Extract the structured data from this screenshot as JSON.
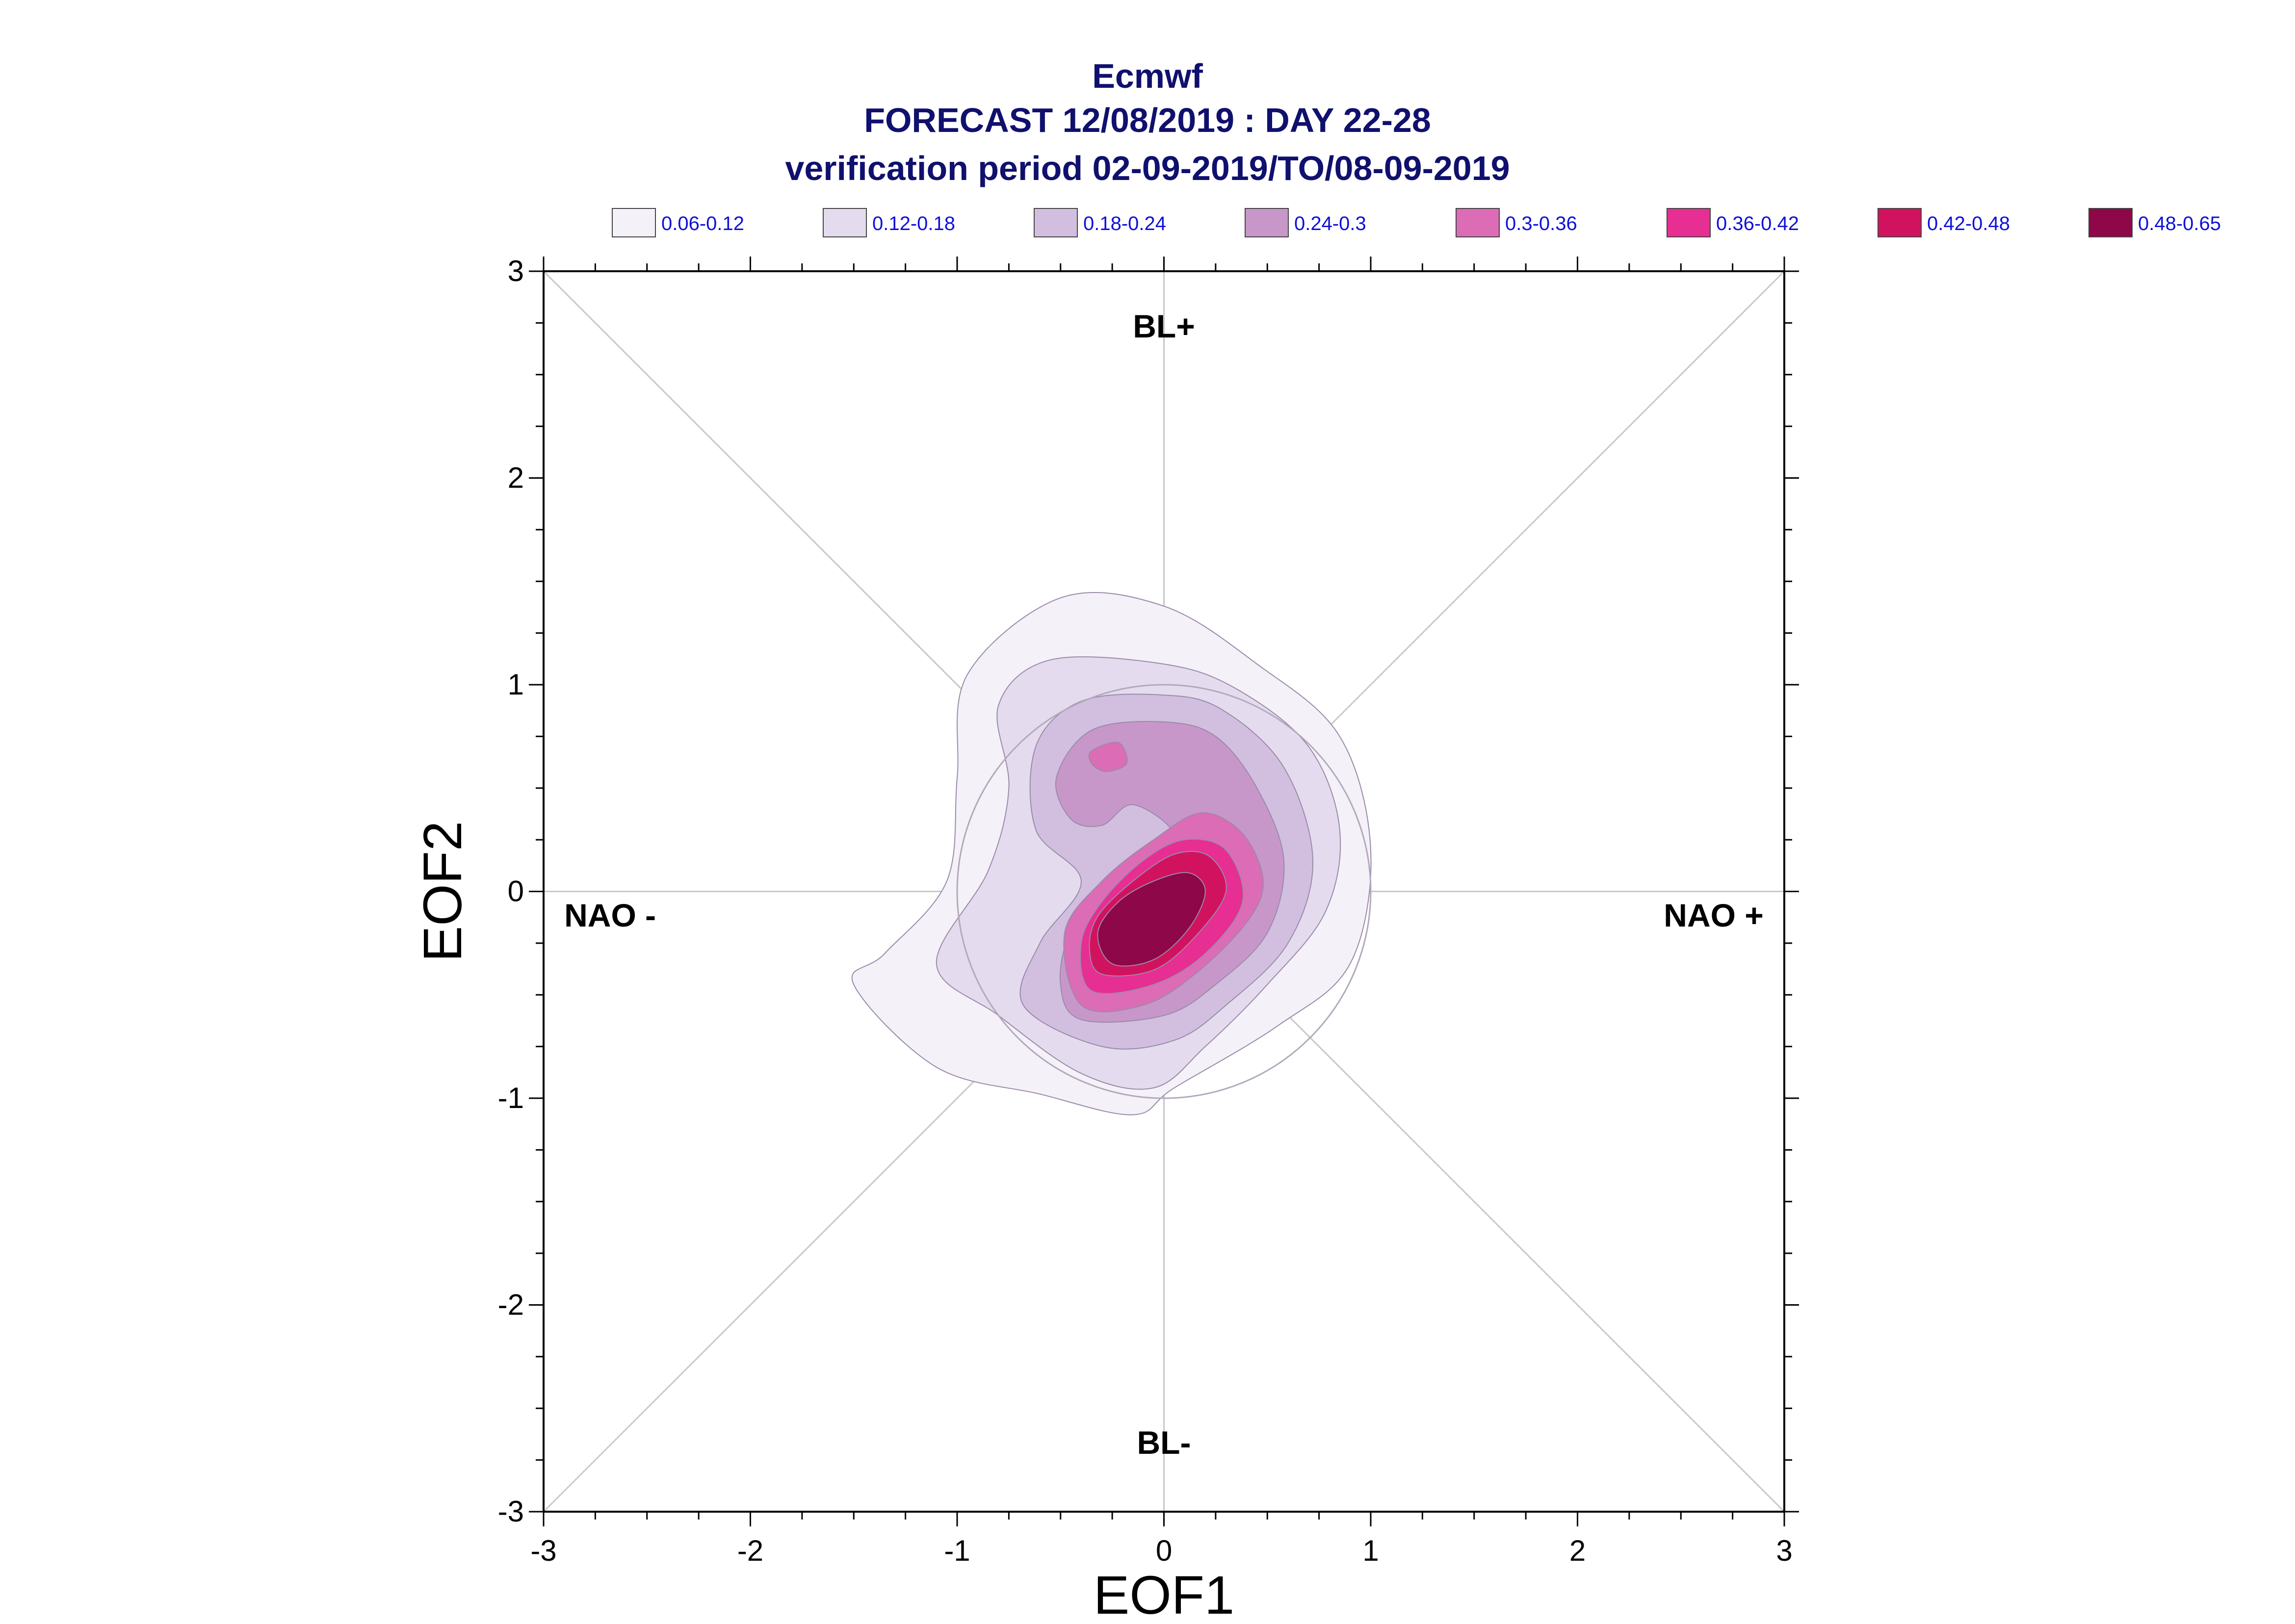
{
  "title": {
    "line1": "Ecmwf",
    "line2": "FORECAST 12/08/2019 : DAY 22-28",
    "line3": "verification period 02-09-2019/TO/08-09-2019"
  },
  "chart_data": {
    "type": "contour",
    "xlabel": "EOF1",
    "ylabel": "EOF2",
    "xlim": [
      -3,
      3
    ],
    "ylim": [
      -3,
      3
    ],
    "xticks": [
      "-3",
      "-2",
      "-1",
      "0",
      "1",
      "2",
      "3"
    ],
    "yticks": [
      "-3",
      "-2",
      "-1",
      "0",
      "1",
      "2",
      "3"
    ],
    "legend_position": "top",
    "levels": [
      {
        "label": "0.06-0.12",
        "color": "#f4f1f8"
      },
      {
        "label": "0.12-0.18",
        "color": "#e4dcee"
      },
      {
        "label": "0.18-0.24",
        "color": "#d2bfdf"
      },
      {
        "label": "0.24-0.3",
        "color": "#c897c9"
      },
      {
        "label": "0.3-0.36",
        "color": "#dc6cb6"
      },
      {
        "label": "0.36-0.42",
        "color": "#e72e92"
      },
      {
        "label": "0.42-0.48",
        "color": "#d1135f"
      },
      {
        "label": "0.48-0.65",
        "color": "#8e0748"
      }
    ],
    "regime_labels": {
      "top": "BL+",
      "bottom": "BL-",
      "left": "NAO -",
      "right": "NAO +"
    },
    "contours": [
      {
        "level": 0,
        "points": [
          [
            -0.6,
            -0.98
          ],
          [
            -0.15,
            -1.08
          ],
          [
            0.05,
            -0.95
          ],
          [
            0.55,
            -0.65
          ],
          [
            0.9,
            -0.35
          ],
          [
            1.0,
            0.2
          ],
          [
            0.85,
            0.75
          ],
          [
            0.45,
            1.1
          ],
          [
            0.0,
            1.38
          ],
          [
            -0.5,
            1.42
          ],
          [
            -0.95,
            1.05
          ],
          [
            -1.0,
            0.55
          ],
          [
            -1.05,
            0.05
          ],
          [
            -1.35,
            -0.3
          ],
          [
            -1.5,
            -0.45
          ],
          [
            -1.1,
            -0.85
          ]
        ]
      },
      {
        "level": 1,
        "points": [
          [
            -0.4,
            -0.88
          ],
          [
            -0.05,
            -0.95
          ],
          [
            0.2,
            -0.75
          ],
          [
            0.5,
            -0.45
          ],
          [
            0.78,
            -0.1
          ],
          [
            0.85,
            0.3
          ],
          [
            0.7,
            0.7
          ],
          [
            0.35,
            0.98
          ],
          [
            0.0,
            1.1
          ],
          [
            -0.55,
            1.12
          ],
          [
            -0.8,
            0.9
          ],
          [
            -0.75,
            0.5
          ],
          [
            -0.85,
            0.1
          ],
          [
            -1.1,
            -0.35
          ],
          [
            -0.8,
            -0.6
          ]
        ]
      },
      {
        "level": 2,
        "points": [
          [
            -0.3,
            -0.75
          ],
          [
            0.05,
            -0.72
          ],
          [
            0.3,
            -0.55
          ],
          [
            0.6,
            -0.25
          ],
          [
            0.72,
            0.15
          ],
          [
            0.58,
            0.6
          ],
          [
            0.28,
            0.88
          ],
          [
            0.0,
            0.95
          ],
          [
            -0.4,
            0.92
          ],
          [
            -0.62,
            0.7
          ],
          [
            -0.62,
            0.3
          ],
          [
            -0.4,
            0.05
          ],
          [
            -0.6,
            -0.25
          ],
          [
            -0.68,
            -0.55
          ]
        ]
      },
      {
        "level": 3,
        "points": [
          [
            -0.4,
            -0.62
          ],
          [
            0.0,
            -0.6
          ],
          [
            0.25,
            -0.45
          ],
          [
            0.5,
            -0.2
          ],
          [
            0.58,
            0.15
          ],
          [
            0.45,
            0.5
          ],
          [
            0.25,
            0.75
          ],
          [
            0.0,
            0.82
          ],
          [
            -0.35,
            0.78
          ],
          [
            -0.52,
            0.55
          ],
          [
            -0.45,
            0.35
          ],
          [
            -0.3,
            0.32
          ],
          [
            -0.15,
            0.42
          ],
          [
            0.05,
            0.28
          ],
          [
            0.0,
            0.1
          ],
          [
            -0.25,
            0.0
          ],
          [
            -0.45,
            -0.2
          ],
          [
            -0.5,
            -0.45
          ]
        ]
      },
      {
        "level": 4,
        "points": [
          [
            -0.4,
            -0.55
          ],
          [
            -0.1,
            -0.55
          ],
          [
            0.15,
            -0.4
          ],
          [
            0.4,
            -0.15
          ],
          [
            0.48,
            0.05
          ],
          [
            0.38,
            0.28
          ],
          [
            0.18,
            0.38
          ],
          [
            -0.05,
            0.25
          ],
          [
            -0.3,
            0.05
          ],
          [
            -0.48,
            -0.2
          ]
        ]
      },
      {
        "level": 4,
        "points": [
          [
            -0.35,
            0.68
          ],
          [
            -0.22,
            0.72
          ],
          [
            -0.18,
            0.62
          ],
          [
            -0.28,
            0.58
          ],
          [
            -0.35,
            0.62
          ]
        ]
      },
      {
        "level": 5,
        "points": [
          [
            -0.35,
            -0.48
          ],
          [
            -0.05,
            -0.45
          ],
          [
            0.2,
            -0.3
          ],
          [
            0.38,
            -0.05
          ],
          [
            0.3,
            0.2
          ],
          [
            0.1,
            0.25
          ],
          [
            -0.1,
            0.15
          ],
          [
            -0.3,
            -0.05
          ],
          [
            -0.4,
            -0.25
          ]
        ]
      },
      {
        "level": 6,
        "points": [
          [
            -0.3,
            -0.4
          ],
          [
            -0.05,
            -0.38
          ],
          [
            0.15,
            -0.22
          ],
          [
            0.3,
            0.0
          ],
          [
            0.22,
            0.17
          ],
          [
            0.05,
            0.18
          ],
          [
            -0.15,
            0.05
          ],
          [
            -0.32,
            -0.12
          ],
          [
            -0.36,
            -0.28
          ]
        ]
      },
      {
        "level": 7,
        "points": [
          [
            -0.25,
            -0.35
          ],
          [
            -0.05,
            -0.33
          ],
          [
            0.12,
            -0.18
          ],
          [
            0.2,
            0.0
          ],
          [
            0.12,
            0.09
          ],
          [
            -0.05,
            0.05
          ],
          [
            -0.22,
            -0.05
          ],
          [
            -0.32,
            -0.2
          ]
        ]
      }
    ]
  }
}
